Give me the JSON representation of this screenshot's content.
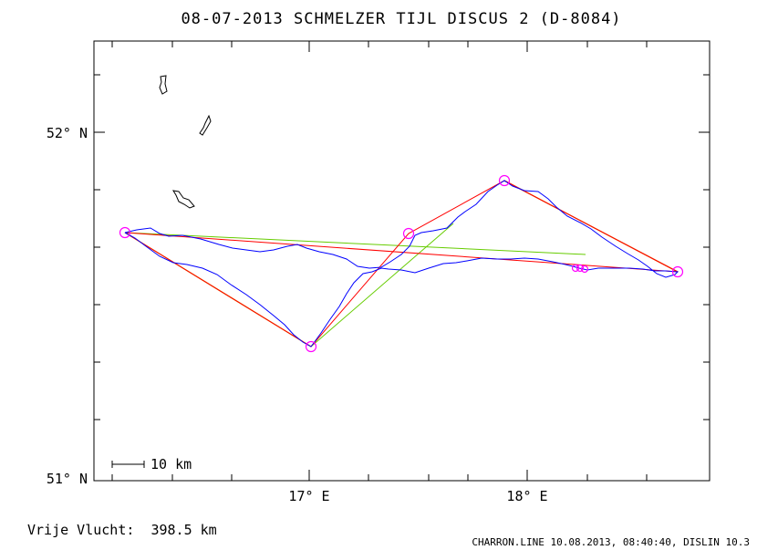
{
  "title": "08-07-2013   SCHMELZER TIJL   DISCUS 2 (D-8084)",
  "axes": {
    "lat_labels": [
      "52° N",
      "51° N"
    ],
    "lon_labels": [
      "17° E",
      "18° E"
    ]
  },
  "scale_bar": {
    "label": "10 km"
  },
  "footer": {
    "distance_text": "Vrije Vlucht:  398.5 km",
    "credit": "CHARRON.LINE 10.08.2013, 08:40:40, DISLIN 10.3"
  },
  "colors": {
    "track": "#0000ff",
    "declared_route": "#ff0000",
    "optimized_route": "#d98c00",
    "alt_route": "#66cc00",
    "turnpoint": "#ff00ff",
    "frame": "#000000"
  },
  "turnpoints": [
    {
      "lon": 16.12,
      "lat": 51.71
    },
    {
      "lon": 17.01,
      "lat": 51.37
    },
    {
      "lon": 17.47,
      "lat": 51.71
    },
    {
      "lon": 17.91,
      "lat": 51.86
    },
    {
      "lon": 18.69,
      "lat": 51.59
    }
  ]
}
